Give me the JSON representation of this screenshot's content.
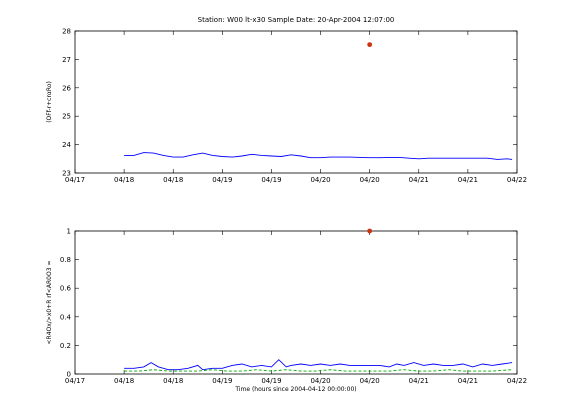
{
  "chart_data": [
    {
      "type": "line",
      "title": "Station: W00 lt-x30  Sample Date: 20-Apr-2004 12:07:00",
      "xlabel": "",
      "ylabel": "(OFf-r+crαRo)",
      "xlim": [
        0,
        9
      ],
      "ylim": [
        23,
        28
      ],
      "x_tick_labels": [
        "04/17",
        "04/18",
        "04/18",
        "04/19",
        "04/19",
        "04/20",
        "04/20",
        "04/21",
        "04/21",
        "04/22"
      ],
      "y_ticks": [
        23,
        24,
        25,
        26,
        27,
        28
      ],
      "grid": false,
      "series": [
        {
          "color": "#0000ff",
          "x": [
            1.0,
            1.2,
            1.4,
            1.6,
            1.8,
            2.0,
            2.2,
            2.4,
            2.6,
            2.8,
            3.0,
            3.2,
            3.4,
            3.6,
            3.8,
            4.0,
            4.2,
            4.4,
            4.6,
            4.8,
            5.0,
            5.2,
            5.4,
            5.6,
            5.8,
            6.0,
            6.2,
            6.4,
            6.6,
            6.8,
            7.0,
            7.2,
            7.4,
            7.6,
            7.8,
            8.0,
            8.2,
            8.4,
            8.6,
            8.8,
            8.9
          ],
          "y": [
            23.62,
            23.62,
            23.72,
            23.7,
            23.62,
            23.56,
            23.56,
            23.64,
            23.7,
            23.62,
            23.58,
            23.56,
            23.6,
            23.66,
            23.62,
            23.6,
            23.58,
            23.64,
            23.6,
            23.54,
            23.54,
            23.56,
            23.56,
            23.56,
            23.55,
            23.54,
            23.54,
            23.55,
            23.55,
            23.52,
            23.5,
            23.52,
            23.52,
            23.52,
            23.52,
            23.52,
            23.52,
            23.52,
            23.48,
            23.5,
            23.48
          ]
        },
        {
          "color": "#cc3311",
          "marker": "dot",
          "x": [
            6.0
          ],
          "y": [
            27.52
          ]
        }
      ]
    },
    {
      "type": "line",
      "title": "",
      "xlabel": "Time (hours since 2004-04-12 00:00:00)",
      "ylabel": "<R4Ox/>x0+R rf<AR0O3 =",
      "xlim": [
        0,
        9
      ],
      "ylim": [
        0,
        1
      ],
      "x_tick_labels": [
        "04/17",
        "04/18",
        "04/18",
        "04/19",
        "04/19",
        "04/20",
        "04/20",
        "04/21",
        "04/21",
        "04/22"
      ],
      "y_ticks": [
        0,
        0.2,
        0.4,
        0.6,
        0.8,
        1
      ],
      "y_tick_labels": [
        "0",
        "0.2",
        "0.4",
        "0.6",
        "0.8",
        "1"
      ],
      "grid": false,
      "series": [
        {
          "color": "#0000ff",
          "x": [
            1.0,
            1.2,
            1.4,
            1.55,
            1.7,
            1.9,
            2.1,
            2.3,
            2.5,
            2.6,
            2.8,
            3.0,
            3.2,
            3.4,
            3.6,
            3.8,
            4.0,
            4.15,
            4.3,
            4.4,
            4.6,
            4.8,
            5.0,
            5.2,
            5.4,
            5.6,
            5.8,
            6.0,
            6.2,
            6.4,
            6.55,
            6.7,
            6.9,
            7.1,
            7.3,
            7.5,
            7.7,
            7.9,
            8.1,
            8.3,
            8.5,
            8.7,
            8.9
          ],
          "y": [
            0.04,
            0.04,
            0.05,
            0.08,
            0.05,
            0.03,
            0.03,
            0.04,
            0.06,
            0.03,
            0.04,
            0.04,
            0.06,
            0.07,
            0.05,
            0.06,
            0.05,
            0.1,
            0.05,
            0.06,
            0.07,
            0.06,
            0.07,
            0.06,
            0.07,
            0.06,
            0.06,
            0.06,
            0.06,
            0.05,
            0.07,
            0.06,
            0.08,
            0.06,
            0.07,
            0.06,
            0.06,
            0.07,
            0.05,
            0.07,
            0.06,
            0.07,
            0.08
          ]
        },
        {
          "color": "#00aa00",
          "dash": true,
          "x": [
            1.0,
            1.3,
            1.6,
            1.9,
            2.2,
            2.5,
            2.8,
            3.1,
            3.4,
            3.7,
            4.0,
            4.3,
            4.6,
            4.9,
            5.2,
            5.5,
            5.8,
            6.1,
            6.4,
            6.7,
            7.0,
            7.3,
            7.6,
            7.9,
            8.2,
            8.5,
            8.9
          ],
          "y": [
            0.02,
            0.02,
            0.03,
            0.02,
            0.02,
            0.02,
            0.03,
            0.02,
            0.02,
            0.03,
            0.02,
            0.03,
            0.02,
            0.02,
            0.03,
            0.02,
            0.02,
            0.02,
            0.02,
            0.03,
            0.02,
            0.02,
            0.03,
            0.02,
            0.02,
            0.02,
            0.03
          ]
        },
        {
          "color": "#cc3311",
          "marker": "dot",
          "x": [
            6.0
          ],
          "y": [
            1.0
          ]
        }
      ]
    }
  ]
}
